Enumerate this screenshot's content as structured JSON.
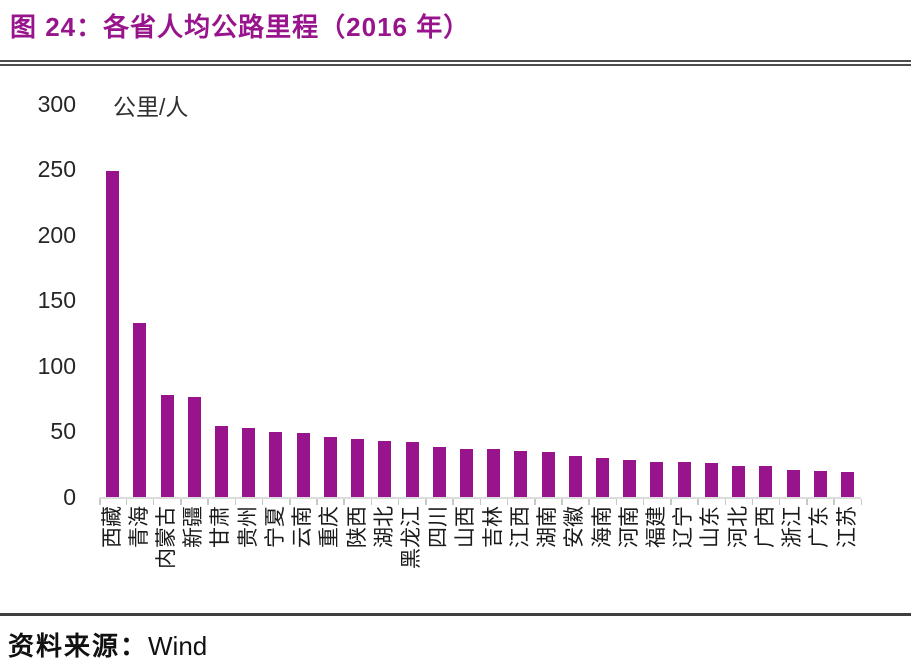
{
  "title": "图 24：各省人均公路里程（2016 年）",
  "source": {
    "label": "资料来源：",
    "value": "Wind"
  },
  "colors": {
    "bar": "#98148C",
    "title_text": "#98148C",
    "axis_line": "#DCDCDC",
    "tick_mark": "#C8C8C8",
    "divider": "#3F3F3F",
    "label_text": "#1A1A1A"
  },
  "chart_data": {
    "type": "bar",
    "title": "各省人均公路里程（2016 年）",
    "figure_label": "图 24",
    "ylabel": "公里/人",
    "xlabel": "",
    "ylim": [
      0,
      300
    ],
    "y_ticks": [
      0,
      50,
      100,
      150,
      200,
      250,
      300
    ],
    "grid": false,
    "legend_position": "none",
    "bar_color": "#98148C",
    "categories": [
      "西藏",
      "青海",
      "内蒙古",
      "新疆",
      "甘肃",
      "贵州",
      "宁夏",
      "云南",
      "重庆",
      "陕西",
      "湖北",
      "黑龙江",
      "四川",
      "山西",
      "吉林",
      "江西",
      "湖南",
      "安徽",
      "海南",
      "河南",
      "福建",
      "辽宁",
      "山东",
      "河北",
      "广西",
      "浙江",
      "广东",
      "江苏"
    ],
    "values": [
      249,
      133,
      78,
      76,
      54,
      53,
      50,
      49,
      46,
      44,
      43,
      42,
      38,
      37,
      37,
      35,
      34,
      31,
      30,
      28,
      27,
      27,
      26,
      24,
      24,
      21,
      20,
      19
    ]
  }
}
